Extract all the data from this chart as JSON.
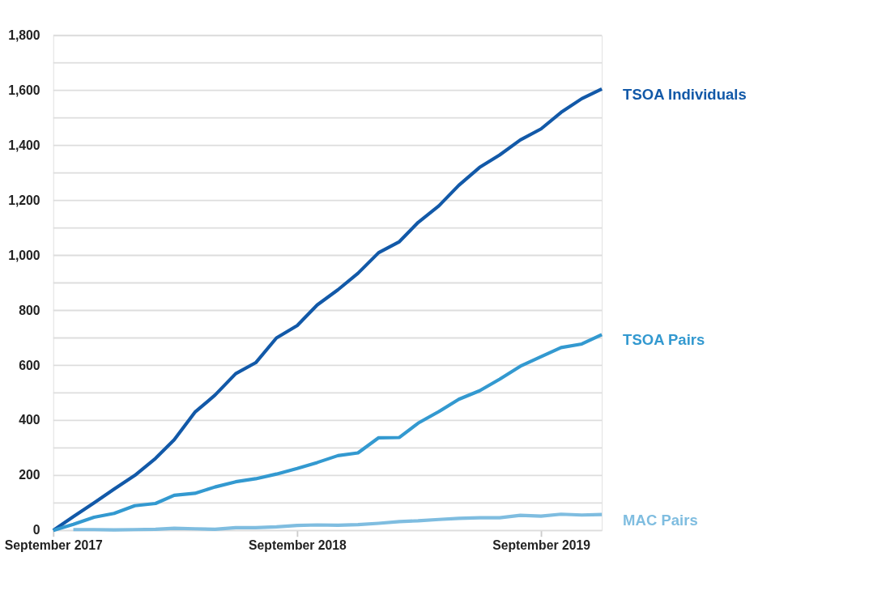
{
  "chart_data": {
    "type": "line",
    "x": [
      "2017-09",
      "2017-10",
      "2017-11",
      "2017-12",
      "2018-01",
      "2018-02",
      "2018-03",
      "2018-04",
      "2018-05",
      "2018-06",
      "2018-07",
      "2018-08",
      "2018-09",
      "2018-10",
      "2018-11",
      "2018-12",
      "2019-01",
      "2019-02",
      "2019-03",
      "2019-04",
      "2019-05",
      "2019-06",
      "2019-07",
      "2019-08",
      "2019-09",
      "2019-10",
      "2019-11",
      "2019-12"
    ],
    "series": [
      {
        "name": "TSOA Individuals",
        "color": "#1259a8",
        "values": [
          0,
          50,
          100,
          150,
          200,
          262,
          330,
          430,
          492,
          570,
          610,
          700,
          745,
          820,
          875,
          935,
          1010,
          1050,
          1120,
          1180,
          1255,
          1320,
          1365,
          1420,
          1460,
          1520,
          1570,
          1605
        ]
      },
      {
        "name": "TSOA Pairs",
        "color": "#3399d0",
        "values": [
          0,
          22,
          48,
          62,
          90,
          98,
          128,
          135,
          158,
          177,
          188,
          205,
          225,
          247,
          272,
          282,
          337,
          338,
          390,
          432,
          477,
          508,
          550,
          597,
          632,
          665,
          678,
          712
        ]
      },
      {
        "name": "MAC Pairs",
        "color": "#7fbde0",
        "values": [
          null,
          3,
          3,
          2,
          3,
          4,
          8,
          6,
          4,
          10,
          10,
          13,
          18,
          20,
          19,
          21,
          26,
          32,
          35,
          40,
          44,
          46,
          46,
          55,
          52,
          59,
          56,
          58
        ]
      }
    ],
    "xlim": [
      "2017-09",
      "2019-12"
    ],
    "xticks": [
      {
        "value": "2017-09",
        "label": "September 2017"
      },
      {
        "value": "2018-09",
        "label": "September 2018"
      },
      {
        "value": "2019-09",
        "label": "September 2019"
      }
    ],
    "ylim": [
      0,
      1800
    ],
    "yticks": [
      0,
      {
        "value": 100,
        "label": null
      },
      200,
      {
        "value": 300,
        "label": null
      },
      400,
      {
        "value": 500,
        "label": null
      },
      600,
      {
        "value": 700,
        "label": null
      },
      800,
      {
        "value": 900,
        "label": null
      },
      {
        "value": 1000,
        "label": "1,000"
      },
      {
        "value": 1100,
        "label": null
      },
      {
        "value": 1200,
        "label": "1,200"
      },
      {
        "value": 1300,
        "label": null
      },
      {
        "value": 1400,
        "label": "1,400"
      },
      {
        "value": 1500,
        "label": null
      },
      {
        "value": 1600,
        "label": "1,600"
      },
      {
        "value": 1700,
        "label": null
      },
      {
        "value": 1800,
        "label": "1,800"
      }
    ],
    "grid": "y",
    "legend": false,
    "line_style": "solid",
    "marker": "none"
  }
}
